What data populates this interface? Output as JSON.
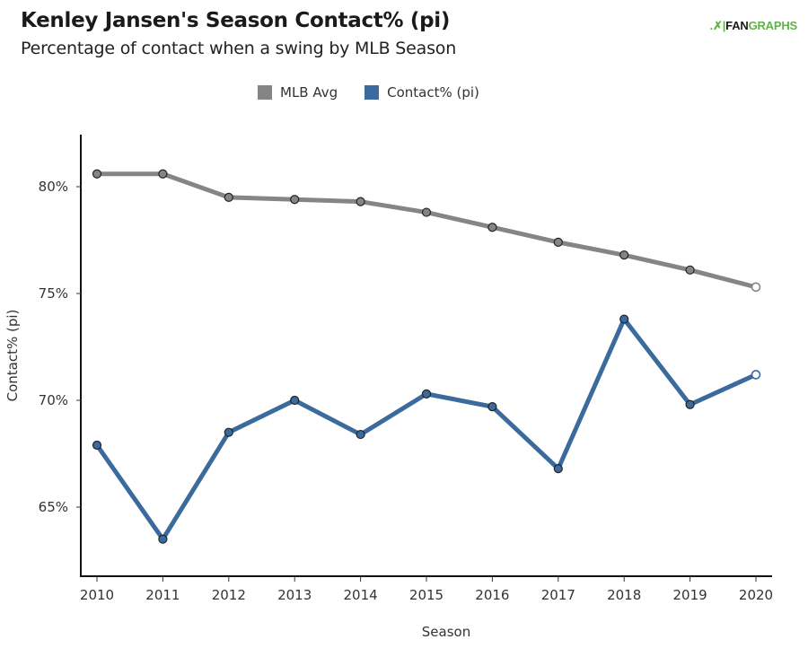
{
  "header": {
    "title": "Kenley Jansen's Season Contact% (pi)",
    "subtitle": "Percentage of contact when a swing by MLB Season",
    "logo_text_dark": "FAN",
    "logo_text_green": "GRAPHS"
  },
  "colors": {
    "mlb_avg": "#858585",
    "contact": "#3b6b9c",
    "logo_green": "#5fb349"
  },
  "chart_data": {
    "type": "line",
    "title": "Kenley Jansen's Season Contact% (pi)",
    "subtitle": "Percentage of contact when a swing by MLB Season",
    "xlabel": "Season",
    "ylabel": "Contact% (pi)",
    "x": [
      2010,
      2011,
      2012,
      2013,
      2014,
      2015,
      2016,
      2017,
      2018,
      2019,
      2020
    ],
    "x_tick_labels": [
      "2010",
      "2011",
      "2012",
      "2013",
      "2014",
      "2015",
      "2016",
      "2017",
      "2018",
      "2019",
      "2020"
    ],
    "y_ticks": [
      65,
      70,
      75,
      80
    ],
    "y_tick_labels": [
      "65%",
      "70%",
      "75%",
      "80%"
    ],
    "ylim": [
      62.0,
      82.5
    ],
    "grid": false,
    "legend_position": "top-center",
    "series": [
      {
        "name": "MLB Avg",
        "color": "#858585",
        "values": [
          80.6,
          80.6,
          79.5,
          79.4,
          79.3,
          78.8,
          78.1,
          77.4,
          76.8,
          76.1,
          75.3
        ]
      },
      {
        "name": "Contact% (pi)",
        "color": "#3b6b9c",
        "values": [
          67.9,
          63.5,
          68.5,
          70.0,
          68.4,
          70.3,
          69.7,
          66.8,
          73.8,
          69.8,
          71.2
        ]
      }
    ],
    "last_point_hollow": true
  }
}
